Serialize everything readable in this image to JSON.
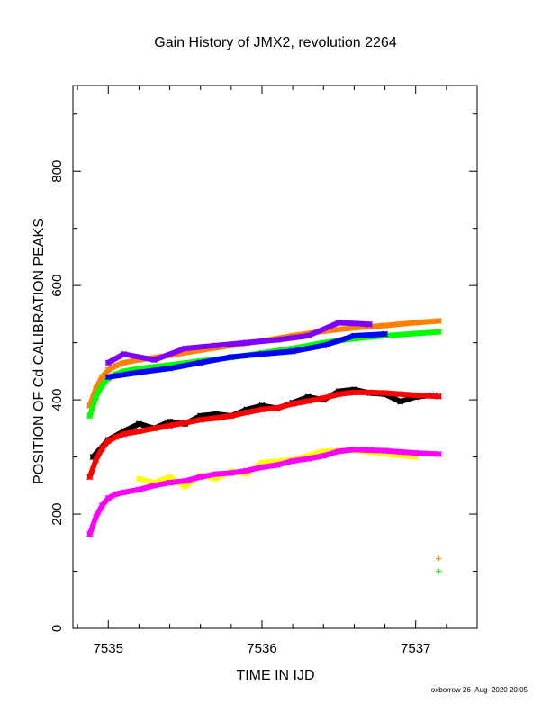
{
  "chart_data": {
    "type": "scatter",
    "title": "Gain History of JMX2, revolution 2264",
    "xlabel": "TIME IN IJD",
    "ylabel": "POSITION OF Cd CALIBRATION PEAKS",
    "xlim": [
      7534.77,
      7537.4
    ],
    "ylim": [
      0,
      950
    ],
    "x_ticks": [
      7535,
      7536,
      7537
    ],
    "x_tick_labels": [
      "7535",
      "7536",
      "7537"
    ],
    "y_ticks": [
      0,
      200,
      400,
      600,
      800
    ],
    "y_tick_labels": [
      "0",
      "200",
      "400",
      "600",
      "800"
    ],
    "grid": false,
    "series": [
      {
        "color": "#ff8000",
        "x": [
          7534.88,
          7534.92,
          7534.96,
          7535.0,
          7535.05,
          7535.1,
          7535.2,
          7535.4,
          7535.6,
          7535.8,
          7536.0,
          7536.2,
          7536.4,
          7536.6,
          7536.8,
          7537.0,
          7537.15
        ],
        "values": [
          390,
          420,
          440,
          452,
          460,
          465,
          470,
          478,
          487,
          495,
          503,
          512,
          520,
          526,
          530,
          535,
          538
        ]
      },
      {
        "color": "#8000ff",
        "x": [
          7535.0,
          7535.1,
          7535.3,
          7535.5,
          7535.7,
          7535.9,
          7536.1,
          7536.3,
          7536.5,
          7536.7
        ],
        "values": [
          465,
          480,
          470,
          490,
          495,
          500,
          505,
          512,
          535,
          532
        ]
      },
      {
        "color": "#00ff00",
        "x": [
          7534.88,
          7534.92,
          7534.96,
          7535.0,
          7535.05,
          7535.1,
          7535.2,
          7535.4,
          7535.6,
          7535.8,
          7536.0,
          7536.2,
          7536.4,
          7536.6,
          7536.8,
          7537.0,
          7537.15
        ],
        "values": [
          372,
          405,
          425,
          438,
          445,
          450,
          455,
          461,
          468,
          474,
          482,
          490,
          500,
          507,
          512,
          516,
          519
        ]
      },
      {
        "color": "#0000ff",
        "x": [
          7535.0,
          7535.2,
          7535.4,
          7535.6,
          7535.8,
          7536.0,
          7536.2,
          7536.4,
          7536.6,
          7536.8
        ],
        "values": [
          440,
          448,
          455,
          465,
          475,
          480,
          485,
          495,
          512,
          515
        ]
      },
      {
        "color": "#000000",
        "x": [
          7534.9,
          7535.0,
          7535.1,
          7535.2,
          7535.3,
          7535.4,
          7535.5,
          7535.6,
          7535.7,
          7535.8,
          7535.9,
          7536.0,
          7536.1,
          7536.2,
          7536.3,
          7536.4,
          7536.5,
          7536.6,
          7536.7,
          7536.8,
          7536.9,
          7537.0,
          7537.1
        ],
        "values": [
          300,
          330,
          345,
          358,
          350,
          362,
          358,
          372,
          375,
          372,
          383,
          390,
          385,
          395,
          405,
          400,
          415,
          418,
          412,
          410,
          397,
          405,
          408
        ]
      },
      {
        "color": "#ff0000",
        "x": [
          7534.88,
          7534.92,
          7534.96,
          7535.0,
          7535.05,
          7535.1,
          7535.2,
          7535.3,
          7535.4,
          7535.5,
          7535.6,
          7535.7,
          7535.8,
          7535.9,
          7536.0,
          7536.1,
          7536.2,
          7536.3,
          7536.4,
          7536.5,
          7536.6,
          7536.7,
          7536.8,
          7536.9,
          7537.0,
          7537.15
        ],
        "values": [
          265,
          295,
          315,
          328,
          335,
          340,
          345,
          350,
          355,
          360,
          365,
          368,
          372,
          378,
          383,
          386,
          393,
          398,
          403,
          410,
          413,
          413,
          412,
          410,
          408,
          406
        ]
      },
      {
        "color": "#ffff00",
        "x": [
          7535.2,
          7535.3,
          7535.4,
          7535.5,
          7535.6,
          7535.7,
          7535.8,
          7535.9,
          7536.0,
          7536.2,
          7536.4,
          7536.6,
          7536.8,
          7537.0
        ],
        "values": [
          262,
          255,
          265,
          248,
          268,
          262,
          275,
          270,
          290,
          295,
          310,
          312,
          305,
          300
        ]
      },
      {
        "color": "#ff00ff",
        "x": [
          7534.88,
          7534.92,
          7534.96,
          7535.0,
          7535.05,
          7535.1,
          7535.2,
          7535.3,
          7535.4,
          7535.5,
          7535.6,
          7535.7,
          7535.8,
          7535.9,
          7536.0,
          7536.1,
          7536.2,
          7536.3,
          7536.4,
          7536.5,
          7536.6,
          7536.7,
          7536.8,
          7536.9,
          7537.0,
          7537.15
        ],
        "values": [
          165,
          195,
          215,
          228,
          235,
          238,
          243,
          250,
          255,
          258,
          265,
          270,
          272,
          276,
          282,
          286,
          293,
          297,
          302,
          310,
          313,
          312,
          311,
          309,
          307,
          305
        ]
      }
    ],
    "legend_markers": [
      {
        "color": "#ff8000",
        "x": 7537.15,
        "value": 122
      },
      {
        "color": "#00ff00",
        "x": 7537.15,
        "value": 100
      }
    ]
  },
  "footer": {
    "credit": "oxborrow 26–Aug–2020 20:05"
  }
}
